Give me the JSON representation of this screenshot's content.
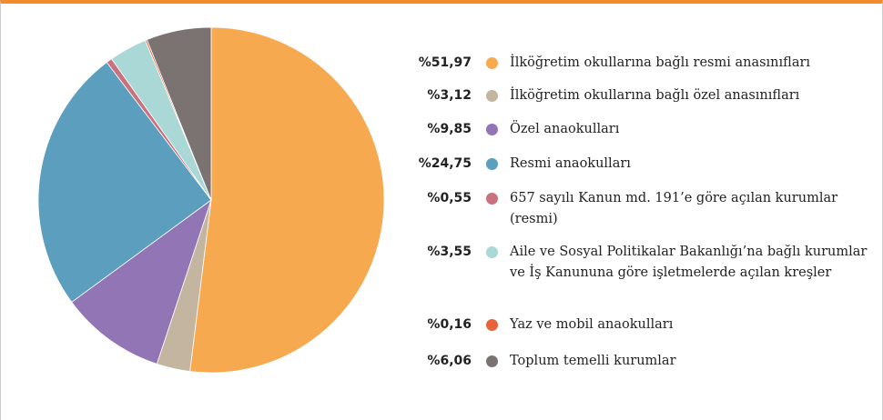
{
  "chart_data": {
    "type": "pie",
    "categories": [
      "İlköğretim okullarına bağlı resmi anasınıfları",
      "İlköğretim okullarına bağlı özel anasınıfları",
      "Özel anaokulları",
      "Resmi anaokulları",
      "657 sayılı Kanun md. 191’e göre açılan kurumlar (resmi)",
      "Aile ve Sosyal Politikalar Bakanlığı’na bağlı kurumlar ve İş Kanununa göre işletmelerde açılan kreşler",
      "Yaz ve mobil anaokulları",
      "Toplum temelli kurumlar"
    ],
    "values": [
      51.97,
      3.12,
      9.85,
      24.75,
      0.55,
      3.55,
      0.16,
      6.06
    ],
    "value_labels": [
      "%51,97",
      "%3,12",
      "%9,85",
      "%24,75",
      "%0,55",
      "%3,55",
      "%0,16",
      "%6,06"
    ],
    "colors": [
      "#f7a94f",
      "#c4b5a0",
      "#9175b5",
      "#5b9ebd",
      "#c9727e",
      "#a9d8d6",
      "#e8623c",
      "#7a7372"
    ]
  }
}
